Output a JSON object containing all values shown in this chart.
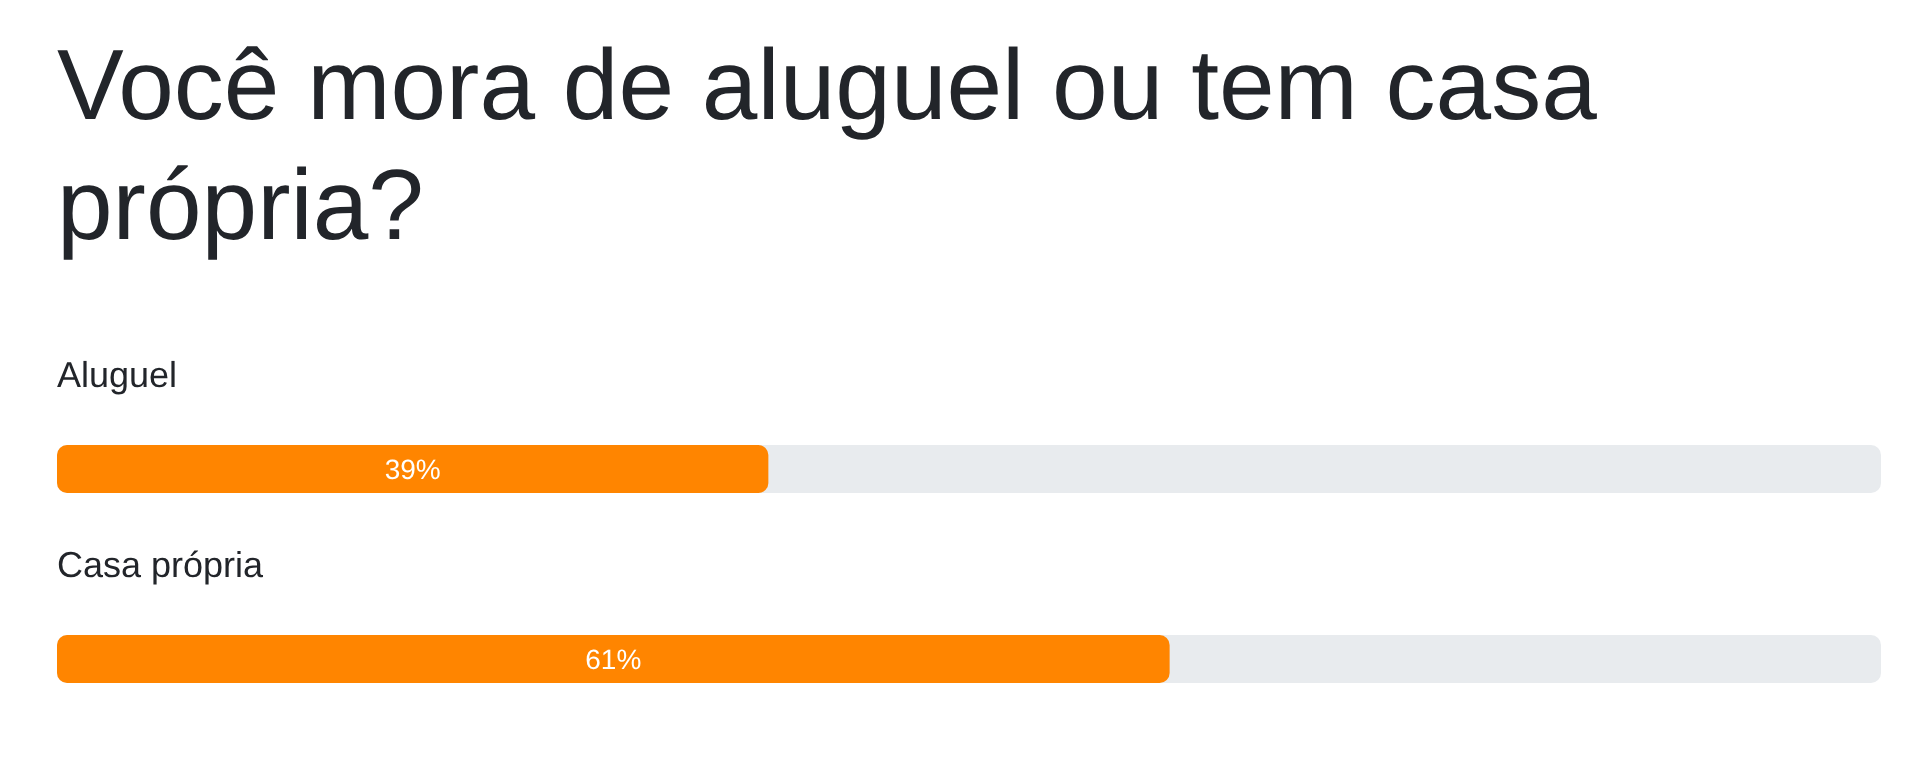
{
  "chart_data": {
    "type": "bar",
    "orientation": "horizontal",
    "title": "Você mora de aluguel ou tem casa própria?",
    "categories": [
      "Aluguel",
      "Casa própria"
    ],
    "values": [
      39,
      61
    ],
    "value_labels": [
      "39%",
      "61%"
    ],
    "color": "#ff8500",
    "xlim": [
      0,
      100
    ]
  }
}
